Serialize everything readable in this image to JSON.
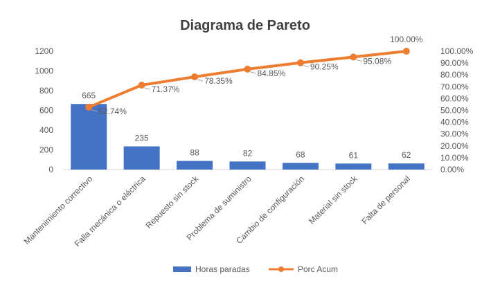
{
  "chart_data": {
    "type": "bar",
    "title": "Diagrama de Pareto",
    "categories": [
      "Mantenimiento correctivo",
      "Falla mecánica o eléctrica",
      "Repuesto sin stock",
      "Problema de suministro",
      "Cambio de configuración",
      "Material sin stock",
      "Falta de personal"
    ],
    "series": [
      {
        "name": "Horas paradas",
        "type": "bar",
        "axis": "left",
        "values": [
          665,
          235,
          88,
          82,
          68,
          61,
          62
        ],
        "labels": [
          "665",
          "235",
          "88",
          "82",
          "68",
          "61",
          "62"
        ]
      },
      {
        "name": "Porc Acum",
        "type": "line",
        "axis": "right",
        "values": [
          52.74,
          71.37,
          78.35,
          84.85,
          90.25,
          95.08,
          100.0
        ],
        "labels": [
          "52.74%",
          "71.37%",
          "78.35%",
          "84.85%",
          "90.25%",
          "95.08%",
          "100.00%"
        ]
      }
    ],
    "y_left": {
      "min": 0,
      "max": 1200,
      "ticks": [
        0,
        200,
        400,
        600,
        800,
        1000,
        1200
      ],
      "tick_labels": [
        "0",
        "200",
        "400",
        "600",
        "800",
        "1000",
        "1200"
      ]
    },
    "y_right": {
      "min": 0,
      "max": 100,
      "ticks": [
        0,
        10,
        20,
        30,
        40,
        50,
        60,
        70,
        80,
        90,
        100
      ],
      "tick_labels": [
        "0.00%",
        "10.00%",
        "20.00%",
        "30.00%",
        "40.00%",
        "50.00%",
        "60.00%",
        "70.00%",
        "80.00%",
        "90.00%",
        "100.00%"
      ]
    },
    "grid": false,
    "legend_position": "bottom",
    "colors": {
      "bar": "#4472c4",
      "line": "#ed7d31",
      "text": "#595959",
      "title": "#404040"
    }
  }
}
